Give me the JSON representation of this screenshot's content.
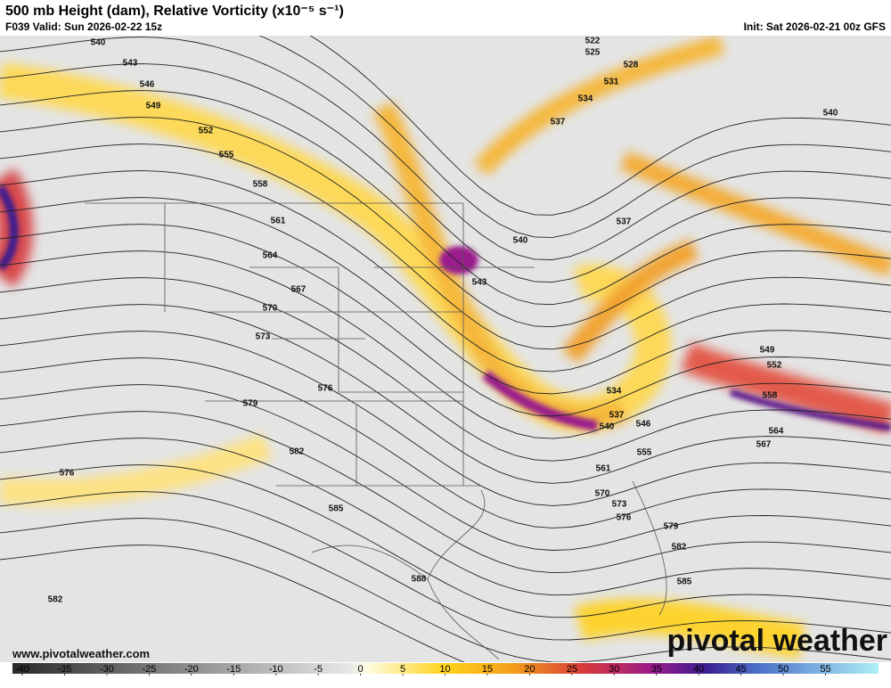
{
  "header": {
    "title": "500 mb Height (dam), Relative Vorticity (x10⁻⁵ s⁻¹)",
    "subtitle": "F039 Valid: Sun 2026-02-22 15z",
    "init": "Init: Sat 2026-02-21 00z GFS"
  },
  "contour_labels": [
    540,
    543,
    546,
    549,
    552,
    555,
    558,
    561,
    564,
    567,
    570,
    573,
    576,
    579,
    582,
    585,
    588,
    576,
    582,
    522,
    525,
    528,
    531,
    534,
    537,
    540,
    537,
    540,
    543,
    534,
    537,
    540,
    546,
    555,
    561,
    570,
    573,
    576,
    579,
    582,
    585,
    549,
    552,
    558,
    564,
    567
  ],
  "colorbar": {
    "ticks": [
      -40,
      -35,
      -30,
      -25,
      -20,
      -15,
      -10,
      -5,
      0,
      5,
      10,
      15,
      20,
      25,
      30,
      35,
      40,
      45,
      50,
      55
    ]
  },
  "footer": {
    "website": "www.pivotalweather.com",
    "logo": "pivotal weather"
  }
}
